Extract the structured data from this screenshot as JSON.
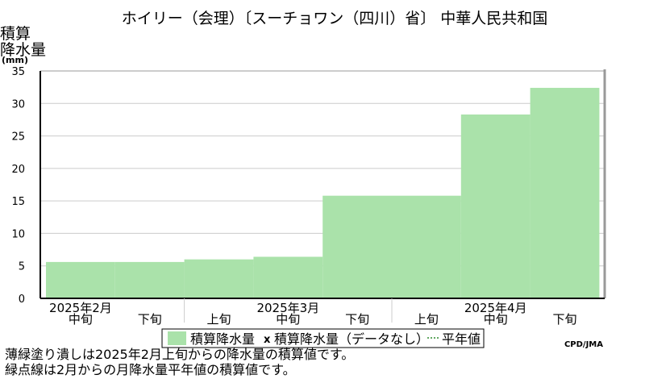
{
  "chart_data": {
    "type": "bar",
    "title": "ホイリー（会理）〔スーチョワン（四川）省〕 中華人民共和国",
    "ylabel_lines": [
      "積算",
      "降水量",
      "(mm)"
    ],
    "ylim": [
      0,
      35
    ],
    "yticks": [
      "0",
      "5",
      "10",
      "15",
      "20",
      "25",
      "30",
      "35"
    ],
    "grid": true,
    "categories": [
      "2月中旬",
      "2月下旬",
      "3月上旬",
      "3月中旬",
      "3月下旬",
      "4月上旬",
      "4月中旬",
      "4月下旬"
    ],
    "tick_labels": [
      "中旬",
      "下旬",
      "上旬",
      "中旬",
      "下旬",
      "上旬",
      "中旬",
      "下旬"
    ],
    "month_labels": [
      "2025年2月",
      "2025年3月",
      "2025年4月"
    ],
    "series": [
      {
        "name": "積算降水量",
        "values": [
          5.6,
          5.6,
          6.0,
          6.4,
          15.8,
          15.8,
          28.3,
          32.4
        ]
      }
    ],
    "colors": {
      "bar": "#aae2aa",
      "frame": "#999999",
      "grid": "#cccccc",
      "axis": "#000000"
    },
    "legend": {
      "placement": "bottom",
      "items": [
        "積算降水量",
        "積算降水量（データなし）",
        "平年値"
      ]
    },
    "credit": "CPD/JMA"
  },
  "notes": [
    "薄緑塗り潰しは2025年2月上旬からの降水量の積算値です。",
    "緑点線は2月からの月降水量平年値の積算値です。"
  ]
}
